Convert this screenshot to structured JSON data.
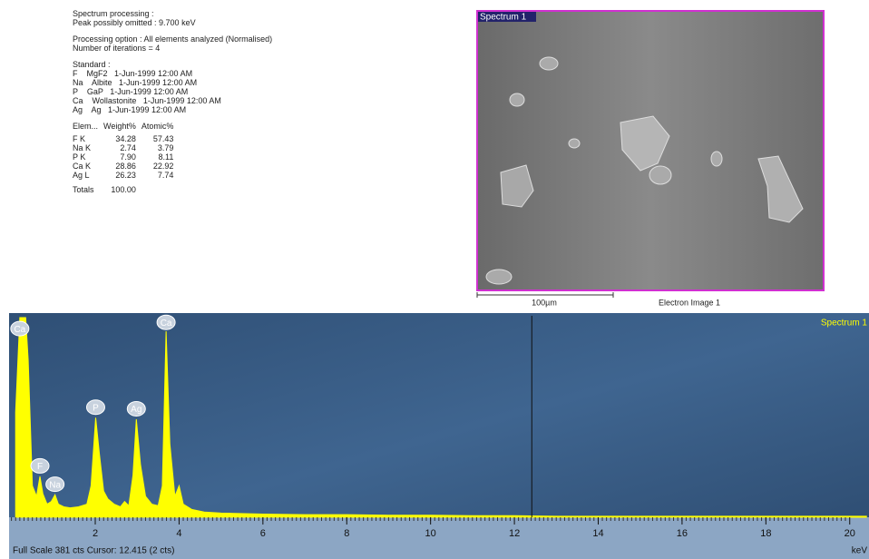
{
  "report": {
    "processing": [
      "Spectrum processing :",
      "Peak possibly omitted : 9.700 keV"
    ],
    "options": [
      "Processing option : All elements analyzed (Normalised)",
      "Number of iterations = 4"
    ],
    "standard": [
      "Standard :",
      "F    MgF2   1-Jun-1999 12:00 AM",
      "Na    Albite   1-Jun-1999 12:00 AM",
      "P    GaP   1-Jun-1999 12:00 AM",
      "Ca    Wollastonite   1-Jun-1999 12:00 AM",
      "Ag    Ag   1-Jun-1999 12:00 AM"
    ],
    "table": {
      "header": [
        "Elem...",
        "Weight%",
        "Atomic%"
      ],
      "rows": [
        [
          "F K",
          "34.28",
          "57.43"
        ],
        [
          "Na K",
          "2.74",
          "3.79"
        ],
        [
          "P K",
          "7.90",
          "8.11"
        ],
        [
          "Ca K",
          "28.86",
          "22.92"
        ],
        [
          "Ag L",
          "26.23",
          "7.74"
        ]
      ],
      "totals": [
        "Totals",
        "100.00"
      ]
    }
  },
  "image": {
    "title": "Spectrum 1",
    "scale_bar": "100µm",
    "caption": "Electron Image 1"
  },
  "spectrum": {
    "title": "Spectrum 1",
    "unit": "keV",
    "footer": "Full Scale 381 cts Cursor: 12.415  (2 cts)",
    "xlim": [
      0,
      20.46
    ],
    "ylim": [
      0,
      381
    ],
    "xticks": [
      2,
      4,
      6,
      8,
      10,
      12,
      14,
      16,
      18,
      20
    ],
    "cursor": 12.415,
    "color": "#ffff00",
    "x": [
      0.1,
      0.2,
      0.3,
      0.34,
      0.4,
      0.5,
      0.6,
      0.68,
      0.75,
      0.85,
      0.95,
      1.04,
      1.12,
      1.25,
      1.4,
      1.6,
      1.8,
      1.9,
      2.01,
      2.1,
      2.2,
      2.3,
      2.45,
      2.6,
      2.7,
      2.8,
      2.9,
      2.98,
      3.08,
      3.2,
      3.35,
      3.5,
      3.6,
      3.69,
      3.78,
      3.9,
      4.0,
      4.1,
      4.3,
      4.6,
      5,
      6,
      7,
      8,
      9,
      10,
      11,
      12,
      13,
      14,
      15,
      16,
      17,
      18,
      19,
      20,
      20.4
    ],
    "counts": [
      200,
      381,
      381,
      381,
      300,
      60,
      40,
      78,
      45,
      25,
      30,
      43,
      25,
      20,
      18,
      20,
      25,
      60,
      190,
      120,
      50,
      35,
      25,
      20,
      30,
      22,
      80,
      187,
      100,
      40,
      25,
      22,
      60,
      355,
      140,
      40,
      60,
      25,
      15,
      10,
      8,
      6,
      5,
      5,
      4,
      4,
      3,
      3,
      2,
      2,
      2,
      2,
      2,
      2,
      2,
      2,
      2
    ],
    "peaks": [
      {
        "label": "Ca",
        "x": 0.2,
        "y": 360
      },
      {
        "label": "F",
        "x": 0.68,
        "y": 98
      },
      {
        "label": "Na",
        "x": 1.04,
        "y": 63
      },
      {
        "label": "P",
        "x": 2.01,
        "y": 210
      },
      {
        "label": "Ag",
        "x": 2.98,
        "y": 207
      },
      {
        "label": "Ca",
        "x": 3.69,
        "y": 372
      }
    ]
  }
}
